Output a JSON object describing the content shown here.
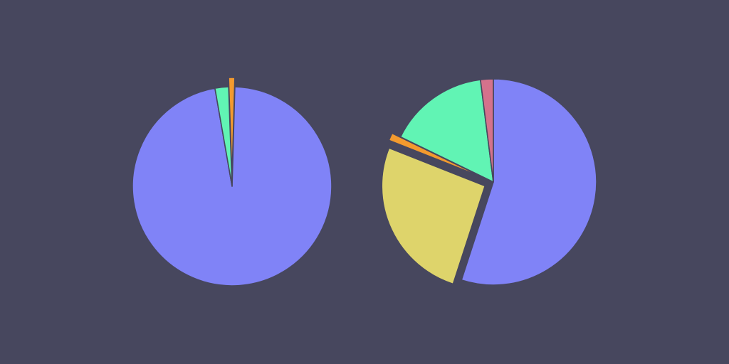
{
  "background": "#47475e",
  "chart_data": [
    {
      "type": "pie",
      "start_angle_deg": -2,
      "slices": [
        {
          "value": 1.0,
          "color": "#f39a2e",
          "exploded": true
        },
        {
          "value": 96.8,
          "color": "#8083f7",
          "exploded": false
        },
        {
          "value": 2.2,
          "color": "#61f4b4",
          "exploded": false
        }
      ]
    },
    {
      "type": "pie",
      "start_angle_deg": 0,
      "slices": [
        {
          "value": 55.0,
          "color": "#8083f7",
          "exploded": false
        },
        {
          "value": 26.0,
          "color": "#ded46b",
          "exploded": true
        },
        {
          "value": 1.2,
          "color": "#f39a2e",
          "exploded": true
        },
        {
          "value": 15.8,
          "color": "#61f4b4",
          "exploded": false
        },
        {
          "value": 2.0,
          "color": "#d4728c",
          "exploded": false
        }
      ]
    }
  ]
}
